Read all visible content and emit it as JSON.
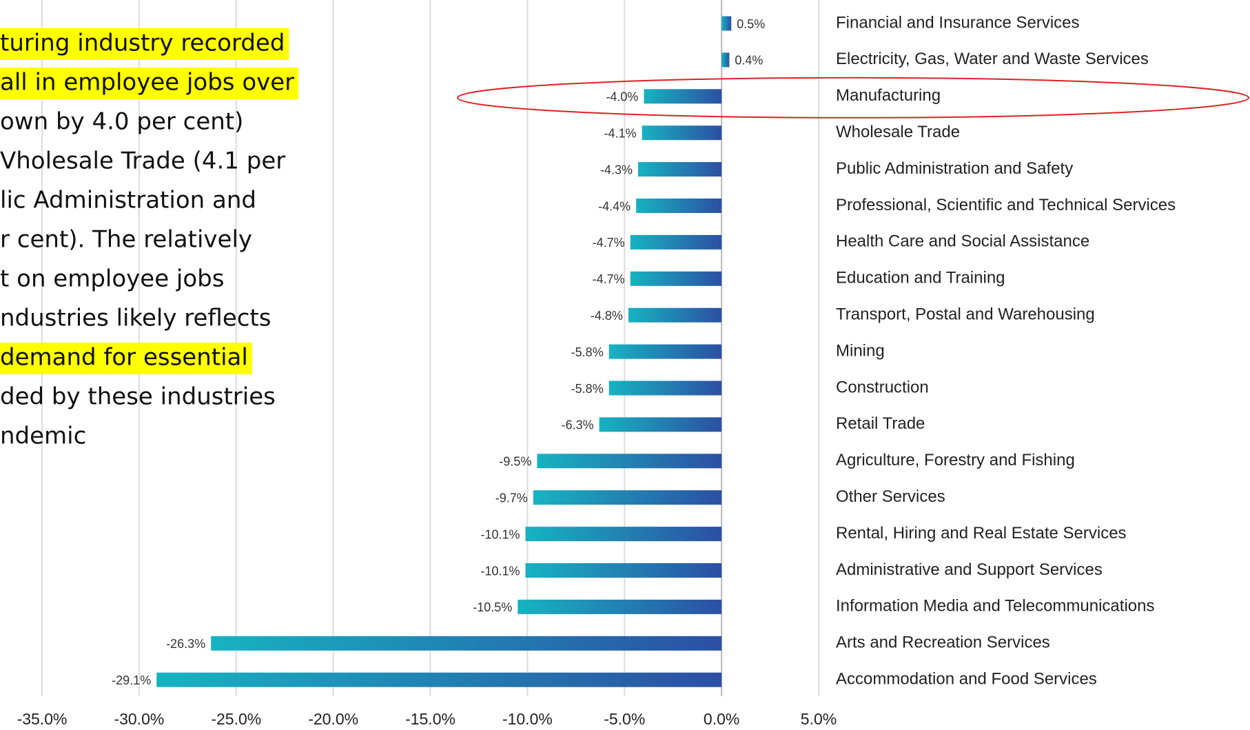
{
  "chart_data": {
    "type": "bar",
    "orientation": "horizontal",
    "categories": [
      "Financial and Insurance Services",
      "Electricity, Gas, Water and Waste Services",
      "Manufacturing",
      "Wholesale Trade",
      "Public Administration and Safety",
      "Professional, Scientific and Technical Services",
      "Health Care and Social Assistance",
      "Education and Training",
      "Transport, Postal and Warehousing",
      "Mining",
      "Construction",
      "Retail Trade",
      "Agriculture, Forestry and Fishing",
      "Other Services",
      "Rental, Hiring and Real Estate Services",
      "Administrative and Support Services",
      "Information Media and Telecommunications",
      "Arts and Recreation Services",
      "Accommodation and Food Services"
    ],
    "values": [
      0.5,
      0.4,
      -4.0,
      -4.1,
      -4.3,
      -4.4,
      -4.7,
      -4.7,
      -4.8,
      -5.8,
      -5.8,
      -6.3,
      -9.5,
      -9.7,
      -10.1,
      -10.1,
      -10.5,
      -26.3,
      -29.1
    ],
    "value_labels": [
      "0.5%",
      "0.4%",
      "-4.0%",
      "-4.1%",
      "-4.3%",
      "-4.4%",
      "-4.7%",
      "-4.7%",
      "-4.8%",
      "-5.8%",
      "-5.8%",
      "-6.3%",
      "-9.5%",
      "-9.7%",
      "-10.1%",
      "-10.1%",
      "-10.5%",
      "-26.3%",
      "-29.1%"
    ],
    "color": [
      "#17b3c1",
      "#2c4fa3"
    ],
    "xlim": [
      -35,
      5
    ],
    "xticks": [
      {
        "value": -35,
        "label": "-35.0%"
      },
      {
        "value": -30,
        "label": "-30.0%"
      },
      {
        "value": -25,
        "label": "-25.0%"
      },
      {
        "value": -20,
        "label": "-20.0%"
      },
      {
        "value": -15,
        "label": "-15.0%"
      },
      {
        "value": -10,
        "label": "-10.0%"
      },
      {
        "value": -5,
        "label": "-5.0%"
      },
      {
        "value": 0,
        "label": "0.0%"
      },
      {
        "value": 5,
        "label": "5.0%"
      }
    ],
    "grid": true,
    "highlight_category": "Manufacturing"
  },
  "annotation": {
    "lines": [
      "turing industry recorded",
      "all in employee jobs over",
      "own by 4.0 per cent)",
      "Vholesale Trade (4.1 per",
      "lic Administration and",
      "r cent). The relatively",
      "t on employee jobs",
      "ndustries likely reflects",
      " demand for essential",
      "ded by these industries",
      "ndemic"
    ],
    "highlighted": [
      0,
      1,
      8
    ],
    "highlight_color": "#ffff00"
  }
}
